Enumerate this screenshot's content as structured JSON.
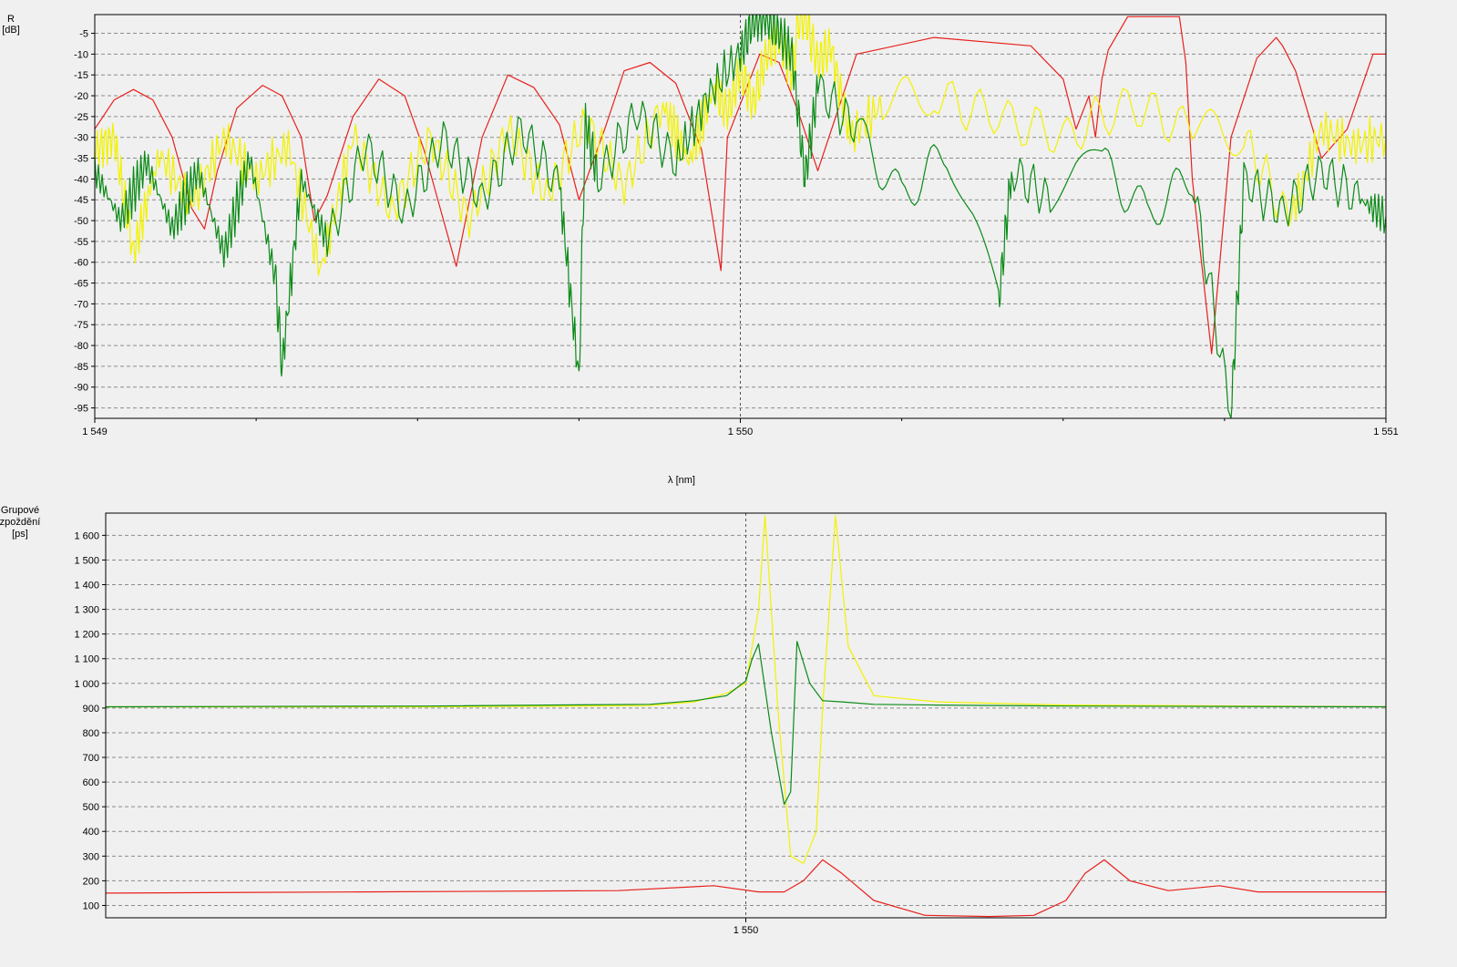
{
  "colors": {
    "background": "#f0f0f0",
    "plot_background": "#f0f0f0",
    "grid": "#8c8c8c",
    "axis": "#000000",
    "red": "#e8201c",
    "yellow": "#f2f200",
    "green": "#0a8a16"
  },
  "chart_data": [
    {
      "type": "line",
      "title": "",
      "ylabel_line1": "R",
      "ylabel_line2": "[dB]",
      "xlabel": "λ  [nm]",
      "xlim": [
        1549,
        1551
      ],
      "ylim": [
        -97.5,
        -0.5
      ],
      "y_ticks": [
        -5,
        -10,
        -15,
        -20,
        -25,
        -30,
        -35,
        -40,
        -45,
        -50,
        -55,
        -60,
        -65,
        -70,
        -75,
        -80,
        -85,
        -90,
        -95
      ],
      "y_tick_labels": [
        "-5",
        "-10",
        "-15",
        "-20",
        "-25",
        "-30",
        "-35",
        "-40",
        "-45",
        "-50",
        "-55",
        "-60",
        "-65",
        "-70",
        "-75",
        "-80",
        "-85",
        "-90",
        "-95"
      ],
      "x_ticks": [
        1549,
        1550,
        1551
      ],
      "x_tick_labels": [
        "1 549",
        "1 550",
        "1 551"
      ],
      "x_minor_ticks": [
        1549.25,
        1549.5,
        1549.75,
        1550.25,
        1550.5,
        1550.75
      ],
      "vertical_marker": 1550,
      "grid": true,
      "series": [
        {
          "color": "red",
          "x": [
            1549.0,
            1549.03,
            1549.06,
            1549.09,
            1549.12,
            1549.15,
            1549.17,
            1549.19,
            1549.22,
            1549.26,
            1549.29,
            1549.32,
            1549.34,
            1549.36,
            1549.4,
            1549.44,
            1549.48,
            1549.51,
            1549.56,
            1549.6,
            1549.64,
            1549.68,
            1549.72,
            1549.75,
            1549.79,
            1549.82,
            1549.86,
            1549.9,
            1549.94,
            1549.97,
            1549.98,
            1550.0,
            1550.03,
            1550.06,
            1550.09,
            1550.12,
            1550.18,
            1550.3,
            1550.45,
            1550.5,
            1550.52,
            1550.54,
            1550.55,
            1550.56,
            1550.57,
            1550.6,
            1550.63,
            1550.66,
            1550.68,
            1550.69,
            1550.7,
            1550.73,
            1550.76,
            1550.8,
            1550.83,
            1550.84,
            1550.86,
            1550.9,
            1550.94,
            1550.98,
            1551.0
          ],
          "y": [
            -28,
            -21,
            -18.5,
            -21,
            -30,
            -47,
            -52,
            -38,
            -23,
            -17.5,
            -20,
            -30,
            -50,
            -44,
            -25,
            -16,
            -20,
            -33,
            -61,
            -30,
            -15,
            -18,
            -27,
            -45,
            -28,
            -14,
            -12,
            -17,
            -33,
            -62,
            -30,
            -22,
            -10,
            -12,
            -24,
            -38,
            -10,
            -6,
            -8,
            -16,
            -28,
            -20,
            -30,
            -16,
            -9,
            -1,
            -1,
            -1,
            -1,
            -12,
            -40,
            -82,
            -30,
            -11,
            -6,
            -8,
            -14,
            -35,
            -28,
            -10,
            -10
          ]
        },
        {
          "color": "yellow",
          "x": [
            1549.0,
            1549.03,
            1549.06,
            1549.1,
            1549.15,
            1549.2,
            1549.25,
            1549.3,
            1549.35,
            1549.4,
            1549.46,
            1549.52,
            1549.58,
            1549.64,
            1549.7,
            1549.76,
            1549.82,
            1549.88,
            1549.92,
            1549.96,
            1549.98,
            1550.0,
            1550.02,
            1550.04,
            1550.06,
            1550.08,
            1550.09,
            1550.1,
            1550.12,
            1550.14,
            1550.17,
            1550.22,
            1550.3,
            1550.4,
            1550.5,
            1550.6,
            1550.7,
            1550.78,
            1550.85,
            1550.9,
            1550.95,
            1551.0
          ],
          "y": [
            -33,
            -30,
            -58,
            -34,
            -46,
            -30,
            -40,
            -32,
            -62,
            -30,
            -48,
            -30,
            -50,
            -28,
            -44,
            -26,
            -42,
            -22,
            -36,
            -18,
            -24,
            -14,
            -22,
            -10,
            -6,
            -15,
            -2,
            -1,
            -12,
            -8,
            -30,
            -22,
            -20,
            -25,
            -30,
            -22,
            -28,
            -30,
            -50,
            -28,
            -32,
            -30
          ]
        },
        {
          "color": "green",
          "x": [
            1549.0,
            1549.04,
            1549.08,
            1549.12,
            1549.16,
            1549.2,
            1549.24,
            1549.28,
            1549.29,
            1549.32,
            1549.36,
            1549.42,
            1549.48,
            1549.54,
            1549.6,
            1549.66,
            1549.72,
            1549.75,
            1549.76,
            1549.78,
            1549.84,
            1549.9,
            1549.95,
            1550.0,
            1550.02,
            1550.04,
            1550.06,
            1550.08,
            1550.1,
            1550.12,
            1550.18,
            1550.25,
            1550.32,
            1550.4,
            1550.42,
            1550.48,
            1550.56,
            1550.63,
            1550.7,
            1550.76,
            1550.78,
            1550.84,
            1550.9,
            1550.96,
            1551.0
          ],
          "y": [
            -38,
            -50,
            -36,
            -52,
            -38,
            -58,
            -35,
            -64,
            -85,
            -40,
            -55,
            -32,
            -48,
            -30,
            -45,
            -28,
            -42,
            -88,
            -26,
            -40,
            -24,
            -36,
            -20,
            -10,
            -2,
            -1,
            -5,
            -10,
            -40,
            -18,
            -28,
            -44,
            -34,
            -70,
            -38,
            -45,
            -36,
            -48,
            -40,
            -97,
            -40,
            -48,
            -38,
            -45,
            -49
          ]
        }
      ]
    },
    {
      "type": "line",
      "title": "",
      "ylabel_line1": "Grupové",
      "ylabel_line2": "zpoždění",
      "ylabel_line3": "[ps]",
      "xlabel": "",
      "xlim": [
        1549,
        1551
      ],
      "ylim": [
        50,
        1690
      ],
      "y_ticks": [
        100,
        200,
        300,
        400,
        500,
        600,
        700,
        800,
        900,
        1000,
        1100,
        1200,
        1300,
        1400,
        1500,
        1600
      ],
      "y_tick_labels": [
        "100",
        "200",
        "300",
        "400",
        "500",
        "600",
        "700",
        "800",
        "900",
        "1 000",
        "1 100",
        "1 200",
        "1 300",
        "1 400",
        "1 500",
        "1 600"
      ],
      "x_ticks": [
        1550
      ],
      "x_tick_labels": [
        "1 550"
      ],
      "vertical_marker": 1550,
      "grid": true,
      "series": [
        {
          "color": "red",
          "x": [
            1549.0,
            1549.4,
            1549.8,
            1549.95,
            1550.02,
            1550.06,
            1550.09,
            1550.12,
            1550.15,
            1550.2,
            1550.28,
            1550.38,
            1550.45,
            1550.5,
            1550.53,
            1550.56,
            1550.6,
            1550.66,
            1550.74,
            1550.8,
            1551.0
          ],
          "y": [
            150,
            155,
            160,
            180,
            155,
            155,
            200,
            285,
            230,
            120,
            60,
            55,
            60,
            120,
            230,
            285,
            200,
            160,
            180,
            155,
            155
          ]
        },
        {
          "color": "yellow",
          "x": [
            1549.0,
            1549.5,
            1549.85,
            1549.92,
            1549.97,
            1550.0,
            1550.02,
            1550.03,
            1550.05,
            1550.07,
            1550.09,
            1550.11,
            1550.12,
            1550.14,
            1550.16,
            1550.2,
            1550.3,
            1550.5,
            1551.0
          ],
          "y": [
            905,
            905,
            910,
            925,
            960,
            1000,
            1300,
            1680,
            900,
            300,
            270,
            400,
            900,
            1680,
            1150,
            950,
            925,
            912,
            905
          ]
        },
        {
          "color": "green",
          "x": [
            1549.0,
            1549.5,
            1549.85,
            1549.92,
            1549.97,
            1550.0,
            1550.01,
            1550.02,
            1550.04,
            1550.06,
            1550.07,
            1550.08,
            1550.1,
            1550.12,
            1550.15,
            1550.2,
            1550.3,
            1550.5,
            1551.0
          ],
          "y": [
            905,
            908,
            915,
            930,
            950,
            1010,
            1100,
            1160,
            800,
            510,
            560,
            1170,
            1000,
            930,
            925,
            915,
            912,
            908,
            905
          ]
        }
      ]
    }
  ]
}
